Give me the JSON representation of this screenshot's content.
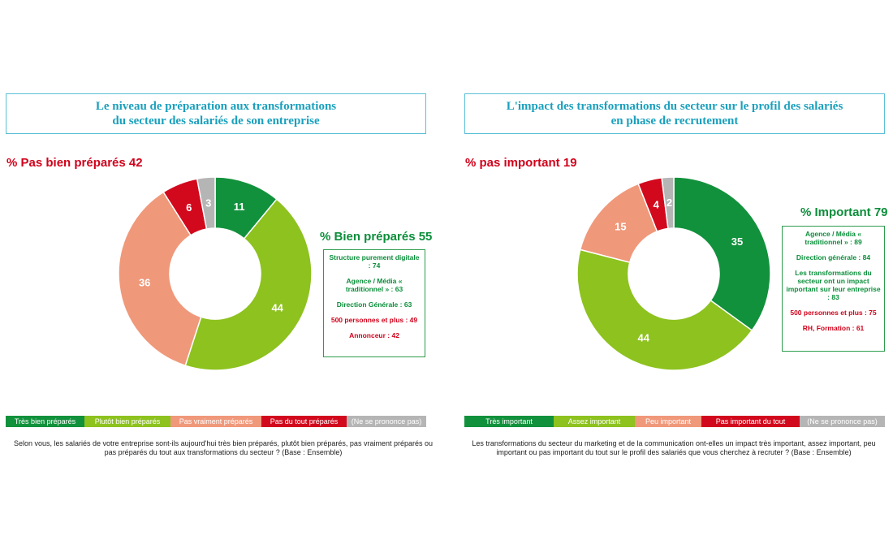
{
  "colors": {
    "title": "#1aa0bd",
    "title_border": "#5bc0d6",
    "negative": "#d0021b",
    "positive": "#0b8e3a",
    "dark_green": "#12913c",
    "light_green": "#8dc21f",
    "salmon": "#f0987a",
    "red": "#d2091d",
    "grey": "#b5b5b5"
  },
  "chart_data": [
    {
      "type": "pie",
      "title": "Le niveau de préparation aux transformations du secteur des salariés de son entreprise",
      "title_lines": [
        "Le niveau de préparation aux transformations",
        "du secteur des salariés de son entreprise"
      ],
      "negative_label": "% Pas bien préparés 42",
      "positive_label": "% Bien préparés 55",
      "slices": [
        {
          "label": "Très bien préparés",
          "value": 11,
          "color": "#12913c"
        },
        {
          "label": "Plutôt bien préparés",
          "value": 44,
          "color": "#8dc21f"
        },
        {
          "label": "Pas vraiment préparés",
          "value": 36,
          "color": "#f0987a"
        },
        {
          "label": "Pas du tout préparés",
          "value": 6,
          "color": "#d2091d"
        },
        {
          "label": "(Ne se prononce pas)",
          "value": 3,
          "color": "#b5b5b5"
        }
      ],
      "callout": [
        {
          "text": "Structure purement digitale : 74",
          "tone": "green"
        },
        {
          "text": "Agence / Média « traditionnel » : 63",
          "tone": "green"
        },
        {
          "text": "Direction Générale : 63",
          "tone": "green"
        },
        {
          "text": "500 personnes et plus : 49",
          "tone": "red"
        },
        {
          "text": "Annonceur : 42",
          "tone": "red"
        }
      ],
      "question": "Selon vous, les salariés de votre entreprise sont-ils aujourd'hui très bien préparés, plutôt bien préparés, pas vraiment préparés ou pas préparés du tout aux transformations du secteur ? (Base : Ensemble)"
    },
    {
      "type": "pie",
      "title": "L'impact des transformations du secteur sur le profil des salariés en phase de recrutement",
      "title_lines": [
        "L'impact des transformations du secteur sur le profil des salariés",
        "en phase de recrutement"
      ],
      "negative_label": "% pas important 19",
      "positive_label": "% Important 79",
      "slices": [
        {
          "label": "Très important",
          "value": 35,
          "color": "#12913c"
        },
        {
          "label": "Assez important",
          "value": 44,
          "color": "#8dc21f"
        },
        {
          "label": "Peu important",
          "value": 15,
          "color": "#f0987a"
        },
        {
          "label": "Pas important du tout",
          "value": 4,
          "color": "#d2091d"
        },
        {
          "label": "(Ne se prononce pas)",
          "value": 2,
          "color": "#b5b5b5"
        }
      ],
      "callout": [
        {
          "text": "Agence / Média « traditionnel » : 89",
          "tone": "green"
        },
        {
          "text": "Direction générale : 84",
          "tone": "green"
        },
        {
          "text": "Les transformations du secteur ont un impact important sur leur entreprise : 83",
          "tone": "green"
        },
        {
          "text": "500 personnes et plus : 75",
          "tone": "red"
        },
        {
          "text": "RH, Formation : 61",
          "tone": "red"
        }
      ],
      "question": "Les transformations du secteur du marketing et de la communication ont-elles un impact très important, assez important, peu important ou pas important du tout sur le profil des salariés que vous cherchez à recruter ? (Base : Ensemble)"
    }
  ]
}
